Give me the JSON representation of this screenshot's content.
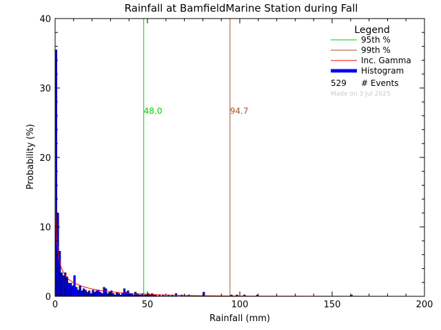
{
  "colors": {
    "p95": "#00cc00",
    "p99": "#a0522d",
    "gamma": "#ff0000",
    "histogram": "#0000ff",
    "histogram_edge": "#000000",
    "made_on": "#c8c8c8"
  },
  "chart_data": {
    "type": "bar",
    "title": "Rainfall at BamfieldMarine Station during Fall",
    "xlabel": "Rainfall (mm)",
    "ylabel": "Probability (%)",
    "xlim": [
      0,
      200
    ],
    "ylim": [
      0,
      40
    ],
    "x_ticks": [
      0,
      50,
      100,
      150,
      200
    ],
    "y_ticks": [
      0,
      10,
      20,
      30,
      40
    ],
    "bin_width": 1,
    "histogram": {
      "x": [
        0,
        1,
        2,
        3,
        4,
        5,
        6,
        7,
        8,
        9,
        10,
        11,
        12,
        13,
        14,
        15,
        16,
        17,
        18,
        19,
        20,
        21,
        22,
        23,
        24,
        25,
        26,
        27,
        28,
        29,
        30,
        31,
        32,
        33,
        34,
        35,
        36,
        37,
        38,
        39,
        40,
        41,
        42,
        43,
        44,
        45,
        46,
        47,
        48,
        49,
        50,
        51,
        52,
        53,
        54,
        56,
        58,
        61,
        63,
        65,
        68,
        72,
        80,
        95,
        98,
        102,
        109,
        160
      ],
      "values": [
        35.5,
        12.0,
        6.5,
        3.4,
        3.0,
        3.4,
        2.8,
        1.9,
        1.9,
        1.5,
        3.0,
        1.3,
        0.9,
        1.5,
        0.8,
        1.1,
        0.9,
        0.6,
        0.8,
        0.4,
        0.9,
        0.6,
        0.8,
        0.9,
        0.6,
        0.4,
        1.3,
        1.1,
        0.4,
        0.6,
        0.8,
        0.4,
        0.2,
        0.6,
        0.4,
        0.2,
        0.4,
        1.1,
        0.6,
        0.8,
        0.4,
        0.4,
        0.2,
        0.6,
        0.4,
        0.2,
        0.2,
        0.4,
        0.2,
        0.2,
        0.4,
        0.2,
        0.4,
        0.2,
        0.2,
        0.2,
        0.2,
        0.2,
        0.2,
        0.4,
        0.2,
        0.2,
        0.6,
        0.2,
        0.2,
        0.2,
        0.2,
        0.2
      ]
    },
    "gamma_curve": {
      "x": [
        0.05,
        0.2,
        0.5,
        1,
        2,
        3,
        4,
        5,
        7,
        10,
        15,
        20,
        25,
        30,
        35,
        40,
        50,
        60,
        70,
        80,
        100,
        120,
        150,
        200
      ],
      "y": [
        24.0,
        14.0,
        10.3,
        7.6,
        5.5,
        4.4,
        3.7,
        3.2,
        2.5,
        1.95,
        1.4,
        1.05,
        0.82,
        0.65,
        0.52,
        0.42,
        0.28,
        0.19,
        0.13,
        0.09,
        0.04,
        0.02,
        0.008,
        0.002
      ]
    },
    "percentiles": [
      {
        "id": "p95",
        "value": 48.0,
        "label": "48.0"
      },
      {
        "id": "p99",
        "value": 94.7,
        "label": "94.7"
      }
    ],
    "legend": {
      "title": "Legend",
      "position": "top-right",
      "items": [
        {
          "id": "p95",
          "label": "95th %"
        },
        {
          "id": "p99",
          "label": "99th %"
        },
        {
          "id": "gamma",
          "label": "Inc. Gamma"
        },
        {
          "id": "histogram",
          "label": "Histogram"
        }
      ],
      "events_count": "529",
      "events_label": "# Events",
      "made_on": "Made on 3 Jul 2025"
    }
  }
}
